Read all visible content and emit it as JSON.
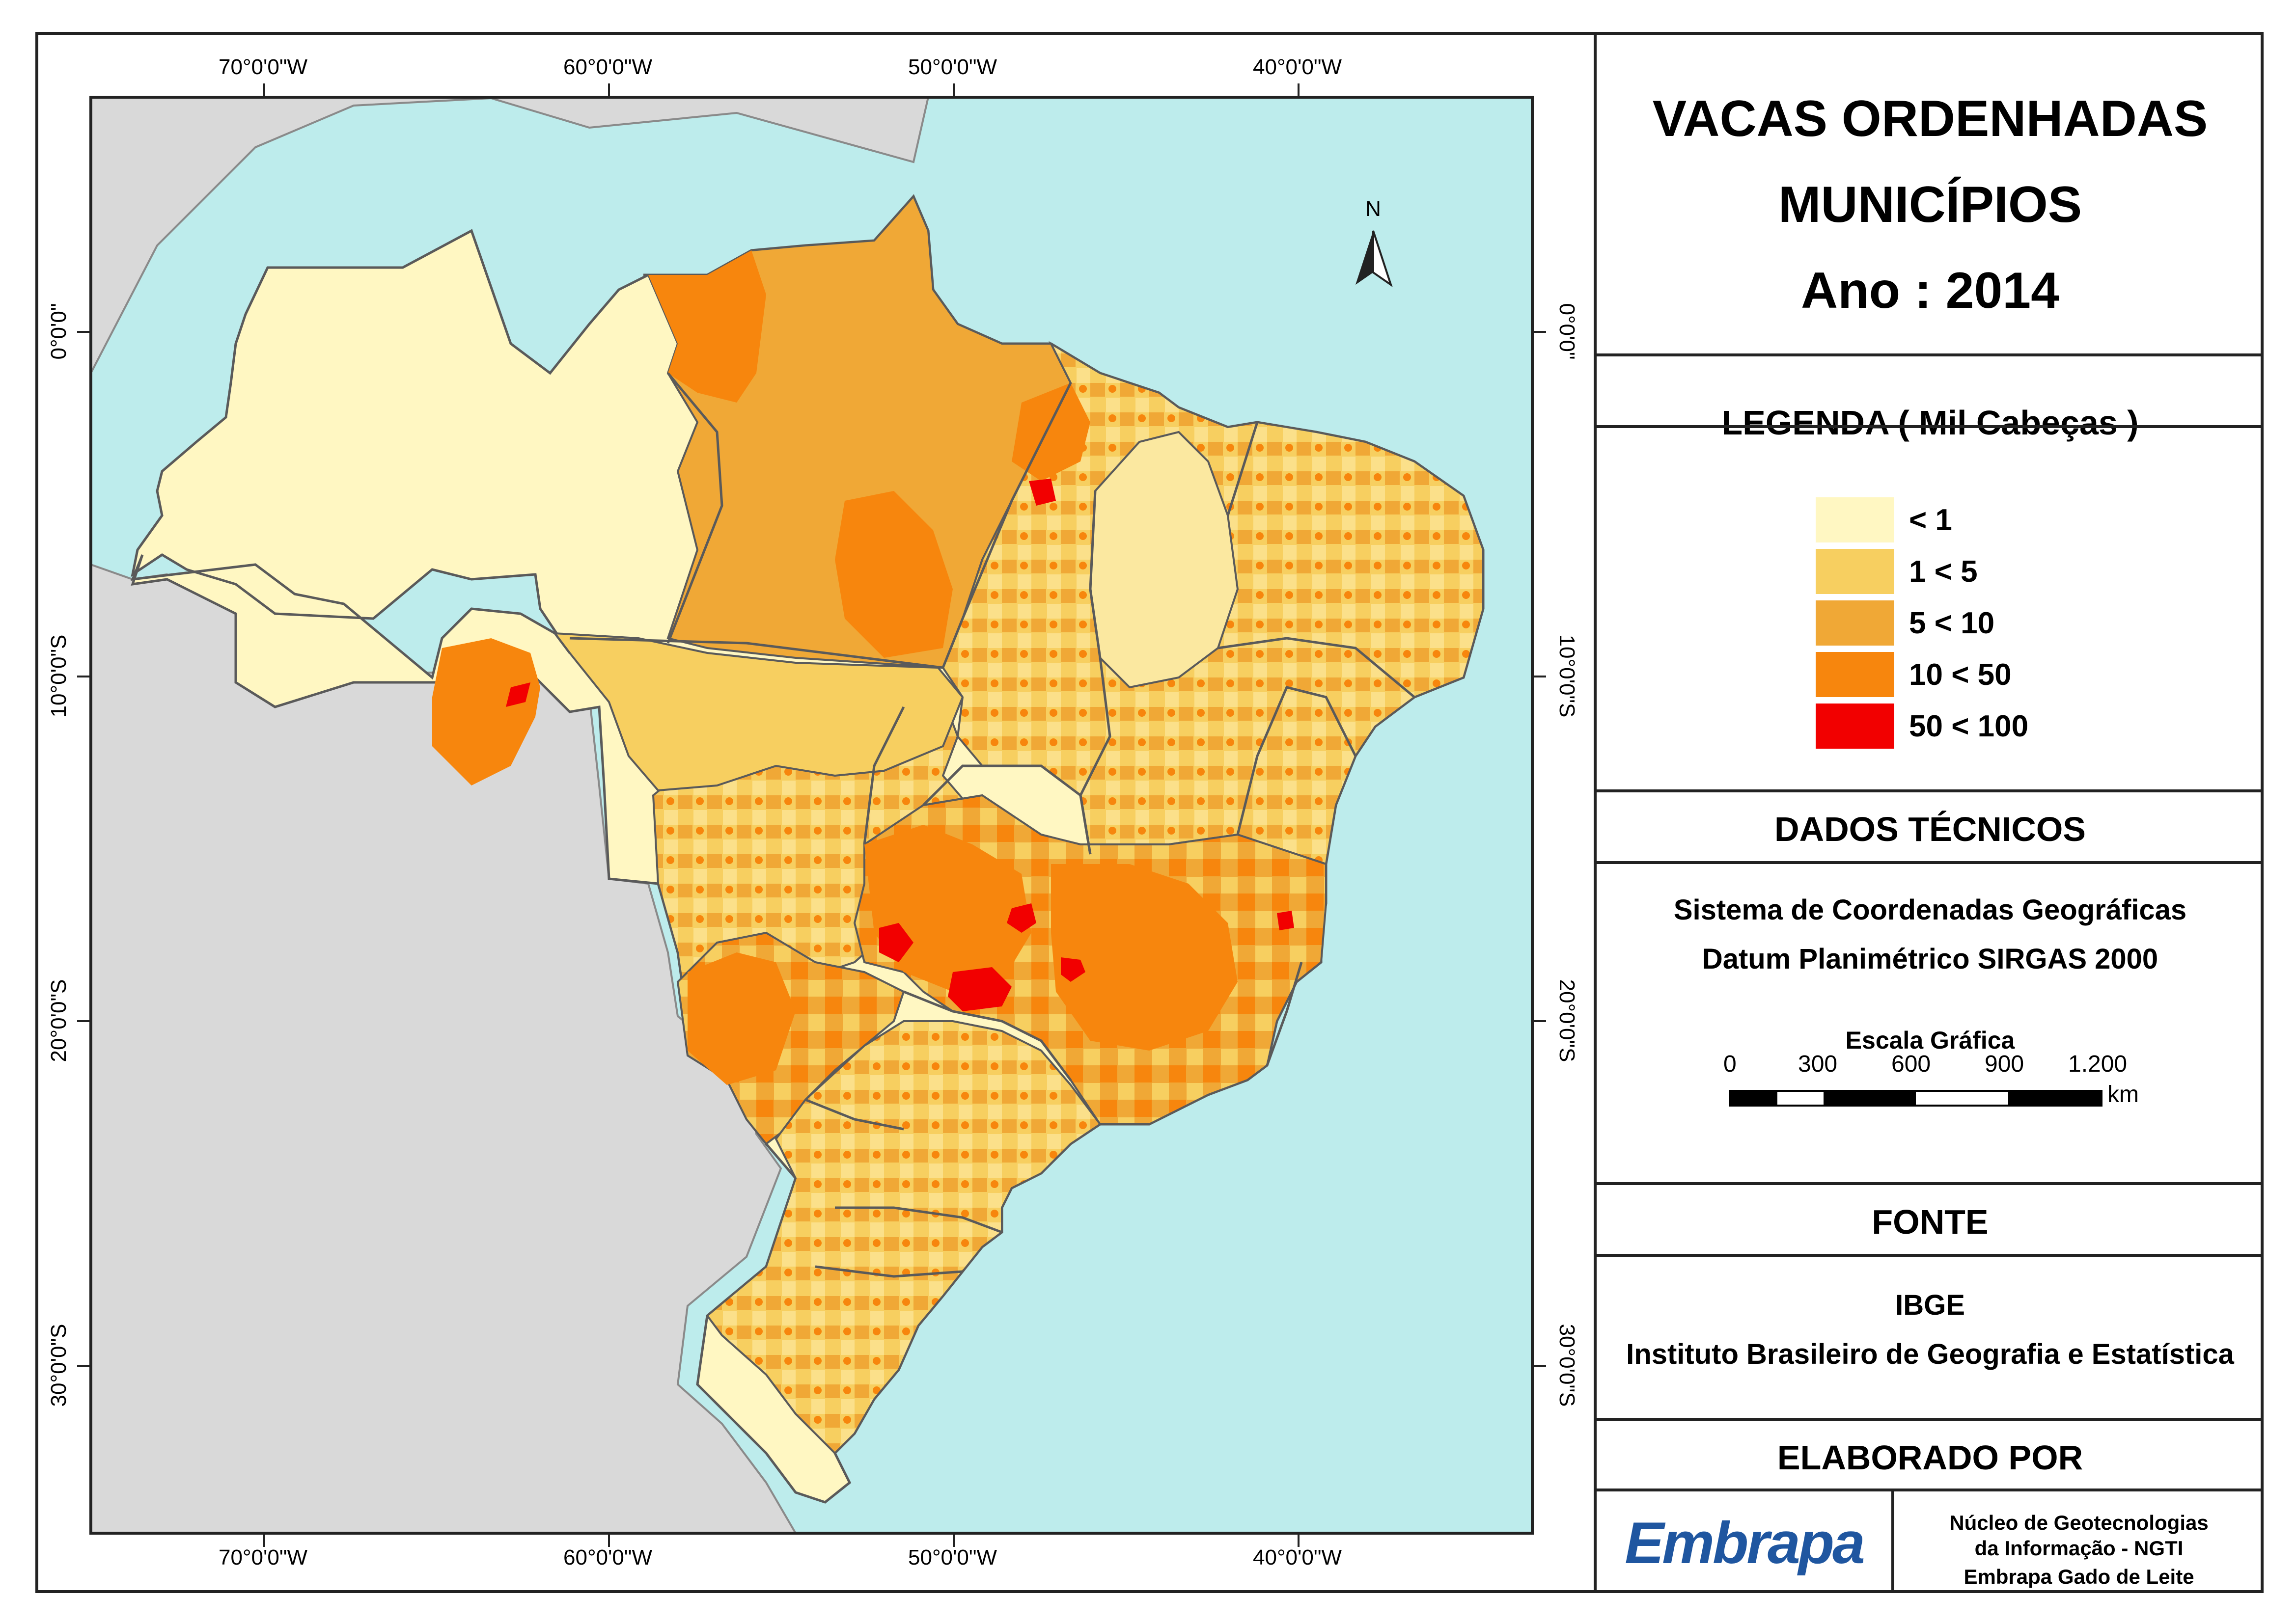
{
  "title": {
    "line1": "VACAS ORDENHADAS",
    "line2": "MUNICÍPIOS",
    "line3": "Ano : 2014"
  },
  "legend": {
    "heading": "LEGENDA ( Mil Cabeças )",
    "items": [
      {
        "label": "< 1",
        "color": "#fff7c2"
      },
      {
        "label": "1 < 5",
        "color": "#f7cf60"
      },
      {
        "label": "5 < 10",
        "color": "#f0a836"
      },
      {
        "label": "10 < 50",
        "color": "#f7860d"
      },
      {
        "label": "50 < 100",
        "color": "#f20000"
      }
    ]
  },
  "technical": {
    "heading": "DADOS TÉCNICOS",
    "line1": "Sistema de Coordenadas Geográficas",
    "line2": "Datum Planimétrico SIRGAS 2000",
    "scale_title": "Escala Gráfica",
    "scale_ticks": [
      "0",
      "300",
      "600",
      "900",
      "1.200"
    ],
    "scale_unit": "km"
  },
  "source": {
    "heading": "FONTE",
    "line1": "IBGE",
    "line2": "Instituto Brasileiro de Geografia e Estatística"
  },
  "made_by": {
    "heading": "ELABORADO POR",
    "logo_text": "Embrapa",
    "line1": "Núcleo de Geotecnologias",
    "line2": "da Informação - NGTI",
    "line3": "Embrapa Gado de Leite"
  },
  "map": {
    "north_label": "N",
    "lon_labels": [
      "70°0'0\"W",
      "60°0'0\"W",
      "50°0'0\"W",
      "40°0'0\"W"
    ],
    "lat_labels": [
      "0°0'0\"",
      "10°0'0\"S",
      "20°0'0\"S",
      "30°0'0\"S"
    ],
    "colors": {
      "ocean": "#bdecec",
      "land_other": "#d9d9d9",
      "borders": "#5a5a5a"
    }
  }
}
